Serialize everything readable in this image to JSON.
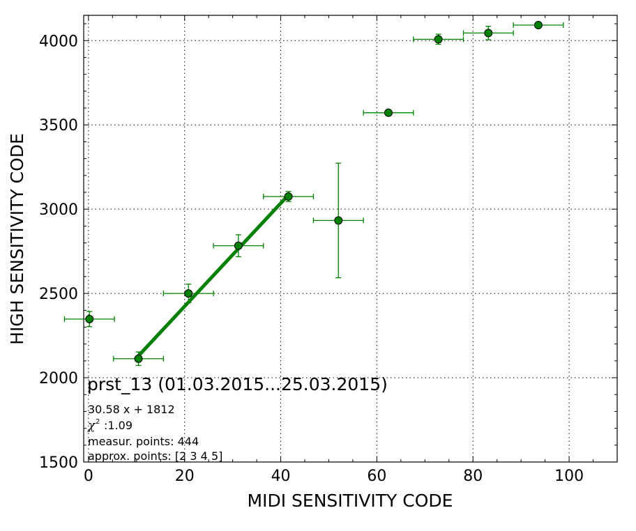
{
  "chart_data": {
    "type": "scatter",
    "xlabel": "MIDI SENSITIVITY CODE",
    "ylabel": "HIGH SENSITIVITY CODE",
    "xlim": [
      -1,
      110
    ],
    "ylim": [
      1500,
      4150
    ],
    "xticks": [
      0,
      20,
      40,
      60,
      80,
      100
    ],
    "yticks": [
      1500,
      2000,
      2500,
      3000,
      3500,
      4000
    ],
    "grid": true,
    "colors": {
      "marker": "#008000",
      "fit_line": "#008000",
      "marker_edge": "#000000"
    },
    "points": [
      {
        "x": 0.2,
        "y": 2348,
        "xerr": 5.2,
        "yerr": 45
      },
      {
        "x": 10.4,
        "y": 2113,
        "xerr": 5.2,
        "yerr": 40
      },
      {
        "x": 20.8,
        "y": 2500,
        "xerr": 5.2,
        "yerr": 55
      },
      {
        "x": 31.2,
        "y": 2783,
        "xerr": 5.2,
        "yerr": 65
      },
      {
        "x": 41.6,
        "y": 3075,
        "xerr": 5.2,
        "yerr": 30
      },
      {
        "x": 52.0,
        "y": 2933,
        "xerr": 5.2,
        "yerr": 340
      },
      {
        "x": 62.4,
        "y": 3572,
        "xerr": 5.2,
        "yerr": 0
      },
      {
        "x": 72.8,
        "y": 4008,
        "xerr": 5.2,
        "yerr": 30
      },
      {
        "x": 83.2,
        "y": 4045,
        "xerr": 5.2,
        "yerr": 40
      },
      {
        "x": 93.6,
        "y": 4092,
        "xerr": 5.2,
        "yerr": 0
      }
    ],
    "fit": {
      "slope": 30.58,
      "intercept": 1812,
      "x_range": [
        10.4,
        41.6
      ]
    },
    "annotations": {
      "title": "prst_13 (01.03.2015...25.03.2015)",
      "equation": "30.58 x + 1812",
      "chi_symbol": "χ",
      "chi_exponent": "2",
      "chi_value": ":1.09",
      "measur_points": "measur. points: 444",
      "approx_points": "approx. points: [2 3 4 5]"
    }
  }
}
